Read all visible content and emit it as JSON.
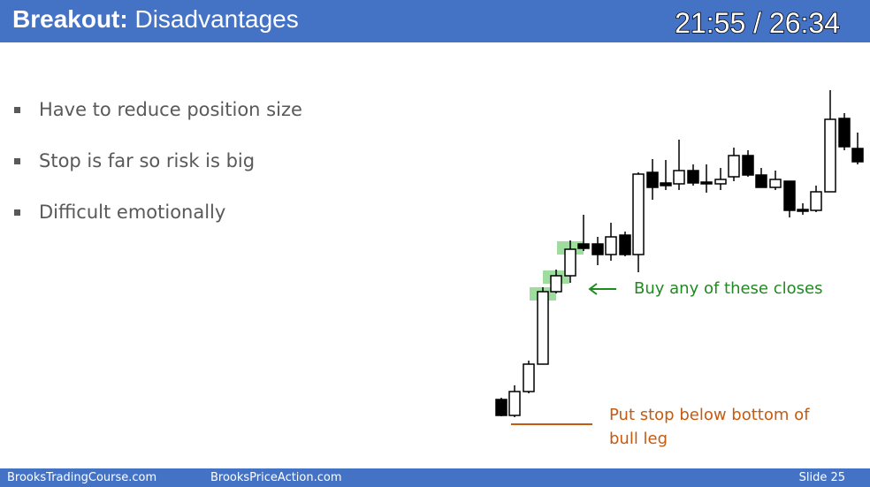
{
  "header": {
    "title_bold": "Breakout:",
    "title_rest": "Disadvantages",
    "timer": "21:55 / 26:34"
  },
  "bullets": [
    "Have to reduce position size",
    "Stop is far so risk is big",
    "Difficult emotionally"
  ],
  "annotations": {
    "buy": "Buy any of these closes",
    "stop": "Put stop below bottom of bull leg"
  },
  "footer": {
    "left": "BrooksTradingCourse.com",
    "middle": "BrooksPriceAction.com",
    "right": "Slide 25"
  }
}
